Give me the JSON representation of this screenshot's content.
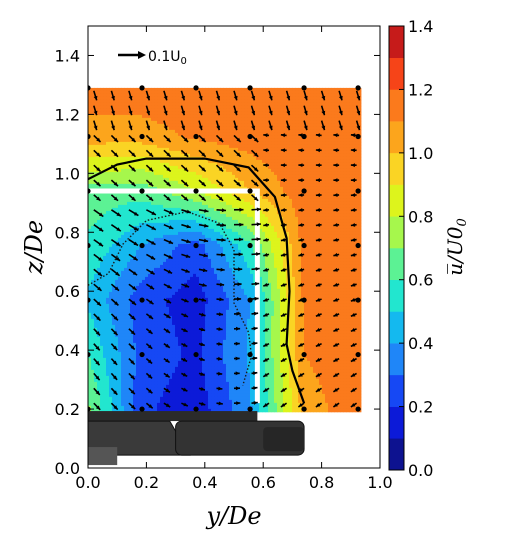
{
  "chart_data": {
    "type": "contour",
    "xlabel": "y/De",
    "ylabel": "z/De",
    "xlim": [
      0.0,
      1.0
    ],
    "ylim": [
      0.0,
      1.5
    ],
    "xticks": [
      "0.0",
      "0.2",
      "0.4",
      "0.6",
      "0.8",
      "1.0"
    ],
    "yticks": [
      "0.0",
      "0.2",
      "0.4",
      "0.6",
      "0.8",
      "1.0",
      "1.2",
      "1.4"
    ],
    "colorbar": {
      "label": "u̅/U0",
      "range": [
        0.0,
        1.4
      ],
      "ticks": [
        "0.0",
        "0.2",
        "0.4",
        "0.6",
        "0.8",
        "1.0",
        "1.2",
        "1.4"
      ],
      "levels": [
        0.0,
        0.1,
        0.2,
        0.3,
        0.4,
        0.5,
        0.6,
        0.7,
        0.8,
        0.9,
        1.0,
        1.1,
        1.2,
        1.3,
        1.4
      ],
      "colors": [
        "#0d1290",
        "#0c1ad8",
        "#1648f4",
        "#1f86f8",
        "#14b9ef",
        "#22e6cf",
        "#5cf294",
        "#a6f74c",
        "#ddf41c",
        "#fad424",
        "#fca51c",
        "#fb7a1c",
        "#f64418",
        "#c61b1a"
      ]
    },
    "reference_vector": {
      "label": "0.1U",
      "label_sub": "0",
      "magnitude": 0.1
    },
    "field": {
      "y": [
        0.0,
        0.185,
        0.37,
        0.555,
        0.74,
        0.925
      ],
      "z": [
        0.2,
        0.385,
        0.57,
        0.755,
        0.94,
        1.125,
        1.29
      ],
      "u": [
        [
          0.72,
          0.22,
          0.14,
          0.38,
          1.05,
          1.16
        ],
        [
          0.6,
          0.26,
          0.18,
          0.42,
          1.1,
          1.17
        ],
        [
          0.48,
          0.24,
          0.15,
          0.4,
          1.12,
          1.17
        ],
        [
          0.58,
          0.4,
          0.25,
          0.58,
          1.14,
          1.17
        ],
        [
          0.66,
          0.64,
          0.8,
          1.0,
          1.16,
          1.17
        ],
        [
          1.05,
          1.05,
          1.12,
          1.15,
          1.17,
          1.17
        ],
        [
          1.17,
          1.17,
          1.17,
          1.17,
          1.17,
          1.17
        ]
      ]
    },
    "contour_line_level": 1.1,
    "contour_line": [
      [
        0.0,
        0.98
      ],
      [
        0.1,
        1.03
      ],
      [
        0.2,
        1.05
      ],
      [
        0.4,
        1.05
      ],
      [
        0.55,
        1.02
      ],
      [
        0.64,
        0.92
      ],
      [
        0.68,
        0.78
      ],
      [
        0.69,
        0.6
      ],
      [
        0.68,
        0.42
      ],
      [
        0.7,
        0.33
      ],
      [
        0.74,
        0.22
      ]
    ],
    "dotted_contour_line": [
      [
        0.0,
        0.62
      ],
      [
        0.07,
        0.66
      ],
      [
        0.12,
        0.76
      ],
      [
        0.2,
        0.84
      ],
      [
        0.34,
        0.87
      ],
      [
        0.45,
        0.83
      ],
      [
        0.5,
        0.74
      ],
      [
        0.5,
        0.56
      ],
      [
        0.55,
        0.46
      ],
      [
        0.56,
        0.38
      ],
      [
        0.53,
        0.28
      ]
    ],
    "body_outline": [
      [
        0.0,
        0.94
      ],
      [
        0.58,
        0.94
      ],
      [
        0.58,
        0.22
      ]
    ]
  }
}
